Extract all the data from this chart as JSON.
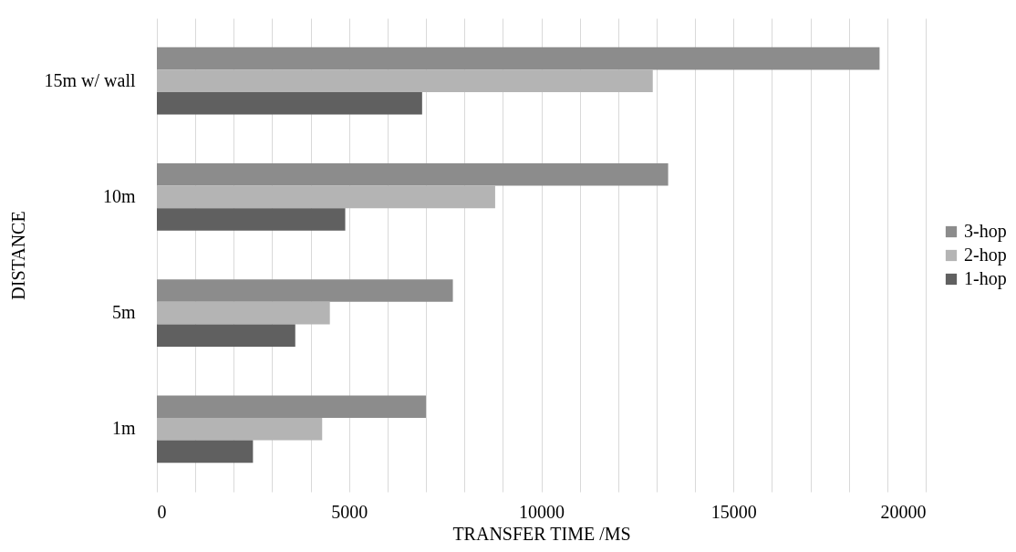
{
  "chart_data": {
    "type": "bar",
    "orientation": "horizontal",
    "xlabel": "TRANSFER TIME /MS",
    "ylabel": "DISTANCE",
    "categories": [
      "15m w/ wall",
      "10m",
      "5m",
      "1m"
    ],
    "series": [
      {
        "name": "3-hop",
        "color": "#8c8c8c",
        "values": [
          18800,
          13300,
          7700,
          7000
        ]
      },
      {
        "name": "2-hop",
        "color": "#b4b4b4",
        "values": [
          12900,
          8800,
          4500,
          4300
        ]
      },
      {
        "name": "1-hop",
        "color": "#606060",
        "values": [
          6900,
          4900,
          3600,
          2500
        ]
      }
    ],
    "xlim": [
      0,
      20000
    ],
    "xticks": [
      0,
      {
        "value": 1000,
        "label": null
      },
      {
        "value": 2000,
        "label": null
      },
      {
        "value": 3000,
        "label": null
      },
      {
        "value": 4000,
        "label": null
      },
      5000,
      {
        "value": 6000,
        "label": null
      },
      {
        "value": 7000,
        "label": null
      },
      {
        "value": 8000,
        "label": null
      },
      {
        "value": 9000,
        "label": null
      },
      10000,
      {
        "value": 11000,
        "label": null
      },
      {
        "value": 12000,
        "label": null
      },
      {
        "value": 13000,
        "label": null
      },
      {
        "value": 14000,
        "label": null
      },
      15000,
      {
        "value": 16000,
        "label": null
      },
      {
        "value": 17000,
        "label": null
      },
      {
        "value": 18000,
        "label": null
      },
      {
        "value": 19000,
        "label": null
      },
      20000
    ],
    "grid": "x",
    "legend": "right"
  }
}
